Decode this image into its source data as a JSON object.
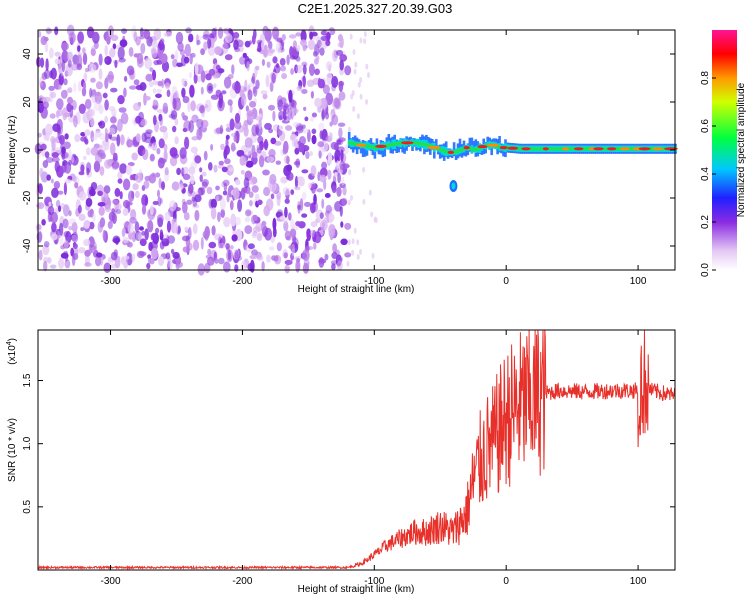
{
  "title": "C2E1.2025.327.20.39.G03",
  "chart_data": [
    {
      "type": "heatmap",
      "xlabel": "Height of straight line (km)",
      "ylabel": "Frequency (Hz)",
      "xlim": [
        -355,
        128
      ],
      "ylim": [
        -50,
        50
      ],
      "xticks": [
        -300,
        -200,
        -100,
        0,
        100
      ],
      "xtick_labels": [
        "-300",
        "-200",
        "-100",
        "0",
        "100"
      ],
      "yticks": [
        -40,
        -20,
        0,
        20,
        40
      ],
      "ytick_labels": [
        "-40",
        "-20",
        "0",
        "20",
        "40"
      ],
      "colorbar": {
        "label": "Normalized spectral amplitude",
        "range": [
          0,
          1
        ],
        "ticks": [
          0.0,
          0.2,
          0.4,
          0.6,
          0.8
        ],
        "tick_labels": [
          "0.0",
          "0.2",
          "0.4",
          "0.6",
          "0.8"
        ]
      },
      "noise_region_x": [
        -355,
        -120
      ],
      "signal_track": {
        "x": [
          -120,
          -110,
          -100,
          -90,
          -80,
          -70,
          -60,
          -50,
          -45,
          -40,
          -35,
          -30,
          -25,
          -20,
          -15,
          -10,
          -5,
          0,
          10,
          20,
          40,
          60,
          80,
          100,
          128
        ],
        "freq": [
          3,
          2,
          1,
          2,
          3,
          3,
          2,
          0,
          -1,
          -1,
          0,
          1,
          0,
          1,
          2,
          2,
          1,
          1,
          0.5,
          0.5,
          0.5,
          0.5,
          0.5,
          0.5,
          0.5
        ]
      },
      "secondary_blob": {
        "x": -40,
        "freq": -15
      }
    },
    {
      "type": "line",
      "xlabel": "Height of straight line (km)",
      "ylabel": "SNR (10 * v/v)",
      "y_multiplier": "(x10",
      "y_multiplier_exp": "4",
      "y_multiplier_close": ")",
      "xlim": [
        -355,
        128
      ],
      "ylim": [
        0,
        1.9
      ],
      "xticks": [
        -300,
        -200,
        -100,
        0,
        100
      ],
      "xtick_labels": [
        "-300",
        "-200",
        "-100",
        "0",
        "100"
      ],
      "yticks": [
        0.5,
        1.0,
        1.5
      ],
      "ytick_labels": [
        "0.5",
        "1.0",
        "1.5"
      ],
      "series": [
        {
          "name": "SNR",
          "color": "#e8302a",
          "x": [
            -355,
            -300,
            -200,
            -120,
            -110,
            -100,
            -90,
            -80,
            -70,
            -60,
            -50,
            -40,
            -30,
            -25,
            -20,
            -15,
            -10,
            -5,
            0,
            10,
            20,
            30,
            40,
            60,
            80,
            100,
            105,
            110,
            128
          ],
          "y": [
            0.02,
            0.02,
            0.02,
            0.02,
            0.05,
            0.12,
            0.2,
            0.25,
            0.3,
            0.3,
            0.35,
            0.3,
            0.45,
            0.7,
            0.85,
            0.95,
            1.0,
            1.1,
            1.2,
            1.3,
            1.35,
            1.4,
            1.42,
            1.41,
            1.42,
            1.42,
            1.5,
            1.42,
            1.38
          ]
        }
      ]
    }
  ]
}
